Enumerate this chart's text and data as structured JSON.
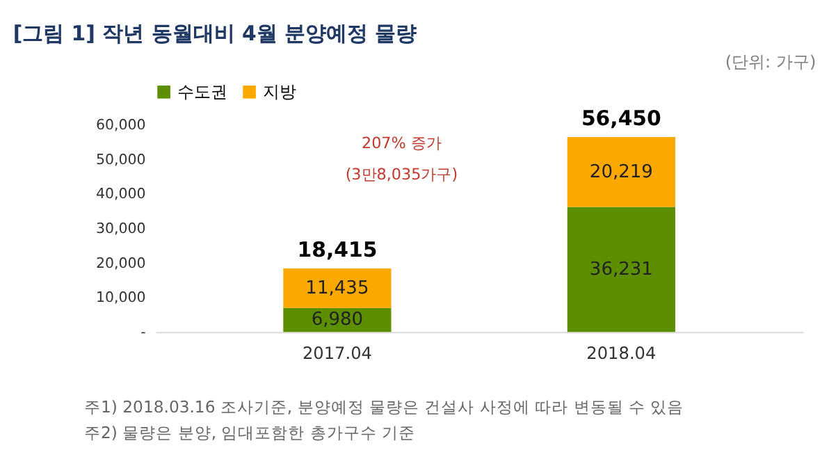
{
  "chart_data": {
    "type": "bar",
    "title": "[그림 1] 작년 동월대비 4월 분양예정 물량",
    "stacked": true,
    "categories": [
      "2017.04",
      "2018.04"
    ],
    "series": [
      {
        "name": "수도권",
        "color": "#5b8f00",
        "values": [
          6980,
          36231
        ],
        "value_labels": [
          "6,980",
          "36,231"
        ]
      },
      {
        "name": "지방",
        "color": "#fba800",
        "values": [
          11435,
          20219
        ],
        "value_labels": [
          "11,435",
          "20,219"
        ]
      }
    ],
    "totals": [
      "18,415",
      "56,450"
    ],
    "ylim": [
      0,
      60000
    ],
    "yticks": [
      {
        "value": 0,
        "label": "-"
      },
      {
        "value": 10000,
        "label": "10,000"
      },
      {
        "value": 20000,
        "label": "20,000"
      },
      {
        "value": 30000,
        "label": "30,000"
      },
      {
        "value": 40000,
        "label": "40,000"
      },
      {
        "value": 50000,
        "label": "50,000"
      },
      {
        "value": 60000,
        "label": "60,000"
      }
    ],
    "grid": false,
    "legend": "top",
    "annotations": [
      "(단위: 가구)",
      "207% 증가",
      "(3만8,035가구)",
      "주1) 2018.03.16 조사기준, 분양예정 물량은 건설사 사정에 따라 변동될 수 있음",
      "주2) 물량은 분양, 임대포함한 총가구수 기준"
    ]
  }
}
